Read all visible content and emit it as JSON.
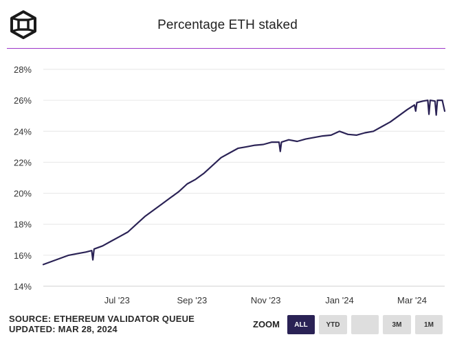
{
  "header": {
    "title": "Percentage ETH staked"
  },
  "logo": {
    "icon": "cube-logo-icon"
  },
  "footer": {
    "source": "SOURCE: ETHEREUM VALIDATOR QUEUE",
    "updated": "UPDATED: MAR 28, 2024"
  },
  "zoom": {
    "label": "ZOOM",
    "buttons": [
      {
        "label": "ALL",
        "active": true
      },
      {
        "label": "YTD",
        "active": false
      },
      {
        "label": "",
        "active": false
      },
      {
        "label": "3M",
        "active": false
      },
      {
        "label": "1M",
        "active": false
      }
    ]
  },
  "colors": {
    "line": "#2a2255",
    "divider": "#9b33c8",
    "grid": "#e6e6e6",
    "active_button": "#2a2255"
  },
  "chart_data": {
    "type": "line",
    "title": "Percentage ETH staked",
    "xlabel": "",
    "ylabel": "",
    "xlim": [
      "2023-05-01",
      "2024-03-28"
    ],
    "ylim": [
      14,
      28
    ],
    "y_ticks": [
      14,
      16,
      18,
      20,
      22,
      24,
      26,
      28
    ],
    "y_tick_labels": [
      "14%",
      "16%",
      "18%",
      "20%",
      "22%",
      "24%",
      "26%",
      "28%"
    ],
    "x_ticks": [
      "2023-07-01",
      "2023-09-01",
      "2023-11-01",
      "2024-01-01",
      "2024-03-01"
    ],
    "x_tick_labels": [
      "Jul '23",
      "Sep '23",
      "Nov '23",
      "Jan '24",
      "Mar '24"
    ],
    "grid": true,
    "series": [
      {
        "x": [
          "2023-05-01",
          "2023-05-08",
          "2023-05-15",
          "2023-05-22",
          "2023-05-29",
          "2023-06-05",
          "2023-06-10",
          "2023-06-11",
          "2023-06-12",
          "2023-06-19",
          "2023-06-26",
          "2023-07-03",
          "2023-07-10",
          "2023-07-17",
          "2023-07-24",
          "2023-07-31",
          "2023-08-07",
          "2023-08-14",
          "2023-08-21",
          "2023-08-28",
          "2023-09-04",
          "2023-09-11",
          "2023-09-18",
          "2023-09-25",
          "2023-10-02",
          "2023-10-09",
          "2023-10-16",
          "2023-10-23",
          "2023-10-30",
          "2023-11-06",
          "2023-11-12",
          "2023-11-13",
          "2023-11-14",
          "2023-11-20",
          "2023-11-27",
          "2023-12-04",
          "2023-12-11",
          "2023-12-18",
          "2023-12-25",
          "2024-01-01",
          "2024-01-08",
          "2024-01-15",
          "2024-01-22",
          "2024-01-29",
          "2024-02-05",
          "2024-02-12",
          "2024-02-19",
          "2024-02-26",
          "2024-03-03",
          "2024-03-04",
          "2024-03-05",
          "2024-03-10",
          "2024-03-14",
          "2024-03-15",
          "2024-03-16",
          "2024-03-20",
          "2024-03-21",
          "2024-03-22",
          "2024-03-26",
          "2024-03-28"
        ],
        "values": [
          15.4,
          15.6,
          15.8,
          16.0,
          16.1,
          16.2,
          16.3,
          15.7,
          16.4,
          16.6,
          16.9,
          17.2,
          17.5,
          18.0,
          18.5,
          18.9,
          19.3,
          19.7,
          20.1,
          20.6,
          20.9,
          21.3,
          21.8,
          22.3,
          22.6,
          22.9,
          23.0,
          23.1,
          23.15,
          23.3,
          23.3,
          22.7,
          23.3,
          23.45,
          23.35,
          23.5,
          23.6,
          23.7,
          23.75,
          24.0,
          23.8,
          23.75,
          23.9,
          24.0,
          24.3,
          24.6,
          25.0,
          25.4,
          25.7,
          25.3,
          25.85,
          25.95,
          26.0,
          25.1,
          26.0,
          25.95,
          25.05,
          26.0,
          26.0,
          25.3
        ]
      }
    ]
  }
}
